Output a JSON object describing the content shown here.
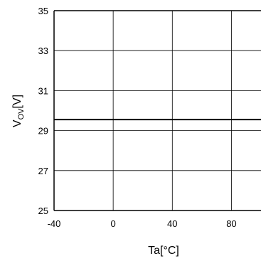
{
  "chart_data": {
    "type": "line",
    "xlabel": "Ta[°C]",
    "ylabel_main": "V",
    "ylabel_sub": "OV",
    "ylabel_unit": "[V]",
    "xlim": [
      -40,
      100
    ],
    "ylim": [
      25,
      35
    ],
    "x_ticks": [
      -40,
      0,
      40,
      80
    ],
    "y_ticks": [
      25,
      27,
      29,
      31,
      33,
      35
    ],
    "grid": true,
    "series": [
      {
        "x": [
          -40,
          100
        ],
        "y": [
          29.55,
          29.55
        ]
      }
    ]
  }
}
